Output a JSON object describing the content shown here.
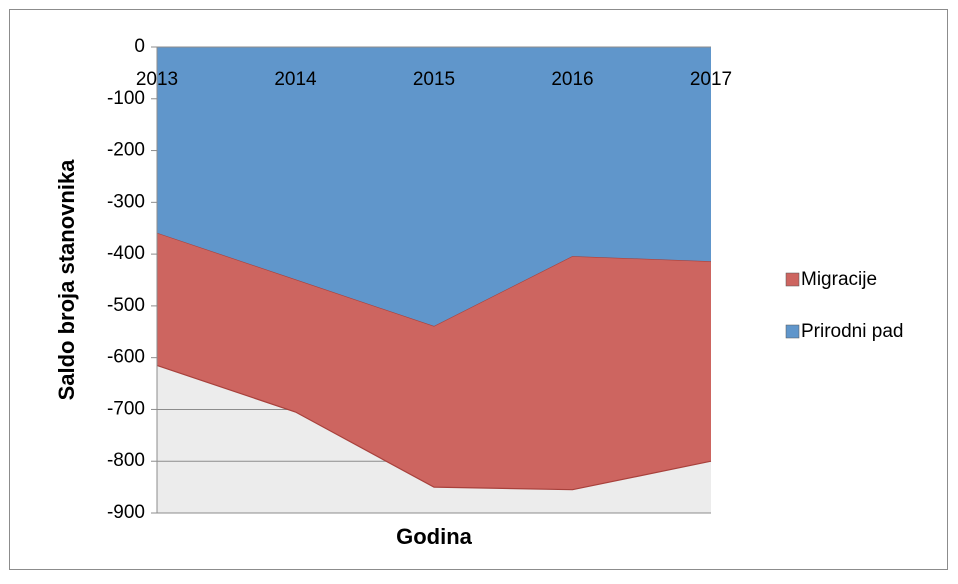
{
  "chart_data": {
    "type": "stacked_area",
    "x_label": "Godina",
    "y_label": "Saldo broja stanovnika",
    "categories": [
      "2013",
      "2014",
      "2015",
      "2016",
      "2017"
    ],
    "series": [
      {
        "name": "Prirodni pad",
        "color": "#6096cb",
        "values": [
          -360,
          -450,
          -540,
          -405,
          -415
        ]
      },
      {
        "name": "Migracije",
        "color": "#cd6560",
        "values": [
          -255,
          -255,
          -310,
          -450,
          -385
        ]
      }
    ],
    "ylim": [
      -900,
      0
    ],
    "yticks": [
      0,
      -100,
      -200,
      -300,
      -400,
      -500,
      -600,
      -700,
      -800,
      -900
    ],
    "grid": true,
    "legend": "right"
  }
}
